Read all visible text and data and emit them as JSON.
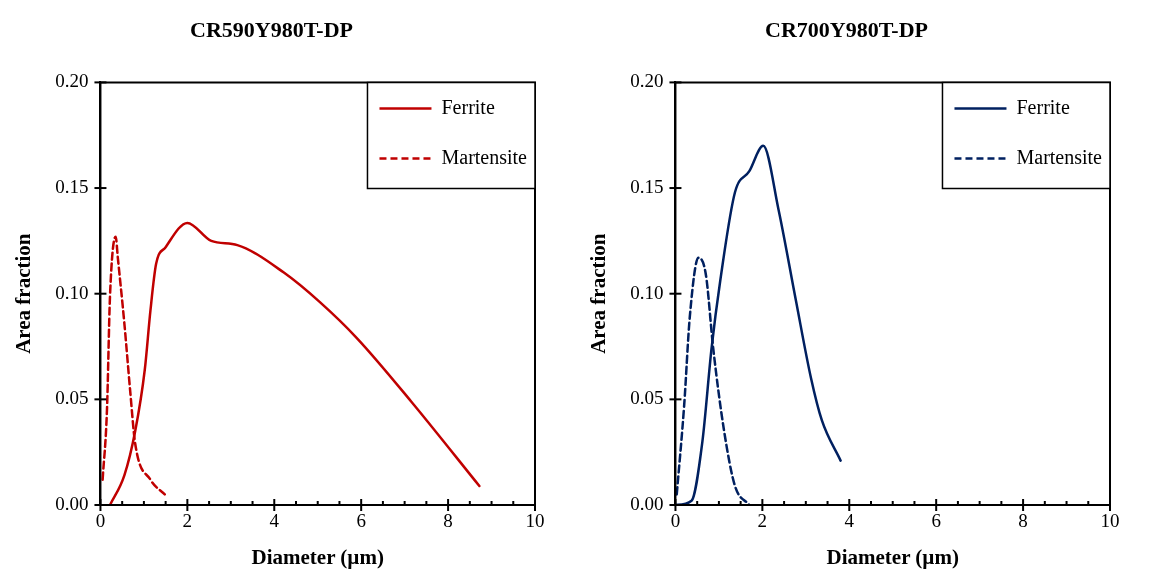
{
  "chart_data": [
    {
      "type": "line",
      "title": "CR590Y980T-DP",
      "xlabel": "Diameter (µm)",
      "ylabel": "Area fraction",
      "xlim": [
        0,
        10
      ],
      "ylim": [
        0,
        0.2
      ],
      "xticks": [
        0,
        {
          "value": 0.5,
          "label": null
        },
        {
          "value": 1,
          "label": null
        },
        {
          "value": 1.5,
          "label": null
        },
        2,
        {
          "value": 2.5,
          "label": null
        },
        {
          "value": 3,
          "label": null
        },
        {
          "value": 3.5,
          "label": null
        },
        4,
        {
          "value": 4.5,
          "label": null
        },
        {
          "value": 5,
          "label": null
        },
        {
          "value": 5.5,
          "label": null
        },
        6,
        {
          "value": 6.5,
          "label": null
        },
        {
          "value": 7,
          "label": null
        },
        {
          "value": 7.5,
          "label": null
        },
        8,
        {
          "value": 8.5,
          "label": null
        },
        {
          "value": 9,
          "label": null
        },
        {
          "value": 9.5,
          "label": null
        },
        10
      ],
      "yticks": [
        {
          "value": 0,
          "label": "0.00"
        },
        {
          "value": 0.05,
          "label": "0.05"
        },
        {
          "value": 0.1,
          "label": "0.10"
        },
        {
          "value": 0.15,
          "label": "0.15"
        },
        {
          "value": 0.2,
          "label": "0.20"
        }
      ],
      "grid": false,
      "legend": "top right",
      "marker": "none",
      "series": [
        {
          "name": "Ferrite",
          "color": "#c00000",
          "line_style": "solid",
          "x": [
            0.22,
            0.55,
            0.8,
            1.02,
            1.15,
            1.28,
            1.5,
            2.0,
            2.55,
            3.15,
            4.22,
            5.05,
            5.9,
            7.15,
            8.72
          ],
          "values": [
            0,
            0.014,
            0.035,
            0.064,
            0.092,
            0.114,
            0.122,
            0.1335,
            0.125,
            0.123,
            0.11,
            0.096,
            0.079,
            0.049,
            0.009
          ]
        },
        {
          "name": "Martensite",
          "color": "#c00000",
          "line_style": "dashed",
          "x": [
            0.05,
            0.15,
            0.22,
            0.35,
            0.4,
            0.55,
            0.68,
            0.8,
            1.15,
            1.48
          ],
          "values": [
            0.012,
            0.045,
            0.099,
            0.127,
            0.117,
            0.086,
            0.055,
            0.029,
            0.012,
            0.005
          ]
        }
      ]
    },
    {
      "type": "line",
      "title": "CR700Y980T-DP",
      "xlabel": "Diameter (µm)",
      "ylabel": "Area fraction",
      "xlim": [
        0,
        10
      ],
      "ylim": [
        0,
        0.2
      ],
      "xticks": [
        0,
        {
          "value": 0.5,
          "label": null
        },
        {
          "value": 1,
          "label": null
        },
        {
          "value": 1.5,
          "label": null
        },
        2,
        {
          "value": 2.5,
          "label": null
        },
        {
          "value": 3,
          "label": null
        },
        {
          "value": 3.5,
          "label": null
        },
        4,
        {
          "value": 4.5,
          "label": null
        },
        {
          "value": 5,
          "label": null
        },
        {
          "value": 5.5,
          "label": null
        },
        6,
        {
          "value": 6.5,
          "label": null
        },
        {
          "value": 7,
          "label": null
        },
        {
          "value": 7.5,
          "label": null
        },
        8,
        {
          "value": 8.5,
          "label": null
        },
        {
          "value": 9,
          "label": null
        },
        {
          "value": 9.5,
          "label": null
        },
        10
      ],
      "yticks": [
        {
          "value": 0,
          "label": "0.00"
        },
        {
          "value": 0.05,
          "label": "0.05"
        },
        {
          "value": 0.1,
          "label": "0.10"
        },
        {
          "value": 0.15,
          "label": "0.15"
        },
        {
          "value": 0.2,
          "label": "0.20"
        }
      ],
      "grid": false,
      "legend": "top right",
      "marker": "none",
      "series": [
        {
          "name": "Ferrite",
          "color": "#002060",
          "line_style": "solid",
          "x": [
            0,
            0.37,
            0.62,
            0.83,
            1.03,
            1.37,
            1.7,
            2.02,
            2.37,
            2.77,
            3.12,
            3.37,
            3.8
          ],
          "values": [
            0,
            0.002,
            0.03,
            0.074,
            0.106,
            0.148,
            0.158,
            0.17,
            0.14,
            0.097,
            0.06,
            0.04,
            0.021
          ]
        },
        {
          "name": "Martensite",
          "color": "#002060",
          "line_style": "dashed",
          "x": [
            0.03,
            0.2,
            0.33,
            0.53,
            0.7,
            0.87,
            1.12,
            1.37,
            1.7
          ],
          "values": [
            0.005,
            0.047,
            0.089,
            0.117,
            0.109,
            0.074,
            0.035,
            0.009,
            0
          ]
        }
      ]
    }
  ]
}
